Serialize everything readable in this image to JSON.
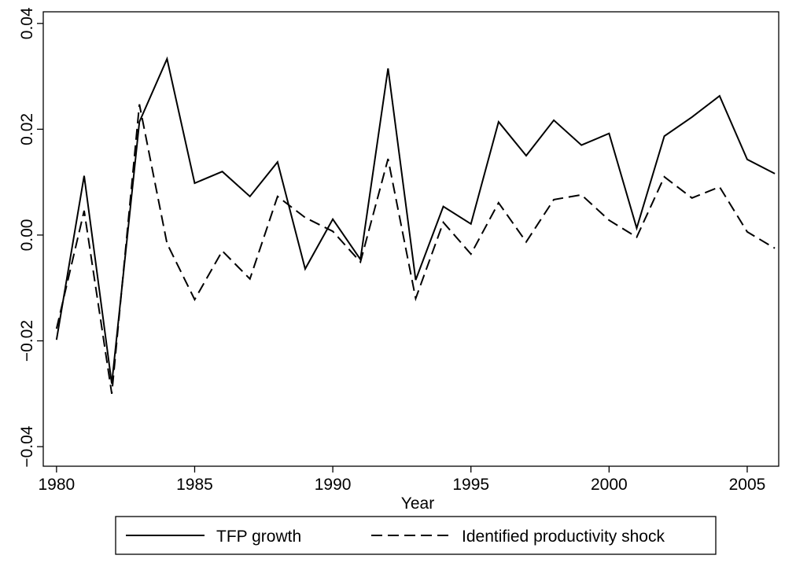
{
  "chart_data": {
    "type": "line",
    "xlabel": "Year",
    "x": [
      1980,
      1981,
      1982,
      1983,
      1984,
      1985,
      1986,
      1987,
      1988,
      1989,
      1990,
      1991,
      1992,
      1993,
      1994,
      1995,
      1996,
      1997,
      1998,
      1999,
      2000,
      2001,
      2002,
      2003,
      2004,
      2005,
      2006
    ],
    "series": [
      {
        "name": "TFP growth",
        "color": "#000000",
        "dash": "solid",
        "values": [
          -0.0198,
          0.0112,
          -0.0281,
          0.0214,
          0.0333,
          0.0098,
          0.012,
          0.0073,
          0.0138,
          -0.0064,
          0.003,
          -0.0046,
          0.0315,
          -0.0085,
          0.0054,
          0.0021,
          0.0214,
          0.015,
          0.0217,
          0.017,
          0.0192,
          0.0013,
          0.0187,
          0.0223,
          0.0263,
          0.0143,
          0.0116
        ]
      },
      {
        "name": "Identified productivity shock",
        "color": "#000000",
        "dash": "dashed",
        "values": [
          -0.0177,
          0.0046,
          -0.03,
          0.0247,
          -0.0016,
          -0.0122,
          -0.003,
          -0.0083,
          0.0073,
          0.0033,
          0.0007,
          -0.0051,
          0.0144,
          -0.012,
          0.0024,
          -0.0036,
          0.0061,
          -0.0013,
          0.0067,
          0.0076,
          0.0028,
          -0.0004,
          0.011,
          0.007,
          0.0091,
          0.0006,
          -0.0025
        ]
      }
    ],
    "xlim": [
      1979.52,
      2006.14
    ],
    "xticks": [
      1980,
      1985,
      1990,
      1995,
      2000,
      2005
    ],
    "ylim": [
      -0.0437,
      0.0422
    ],
    "yticks": [
      {
        "value": -0.04,
        "label": "−0.04"
      },
      {
        "value": -0.02,
        "label": "−0.02"
      },
      {
        "value": 0,
        "label": "0.00"
      },
      0.02,
      0.04
    ],
    "grid": false,
    "legend": "bottom"
  }
}
